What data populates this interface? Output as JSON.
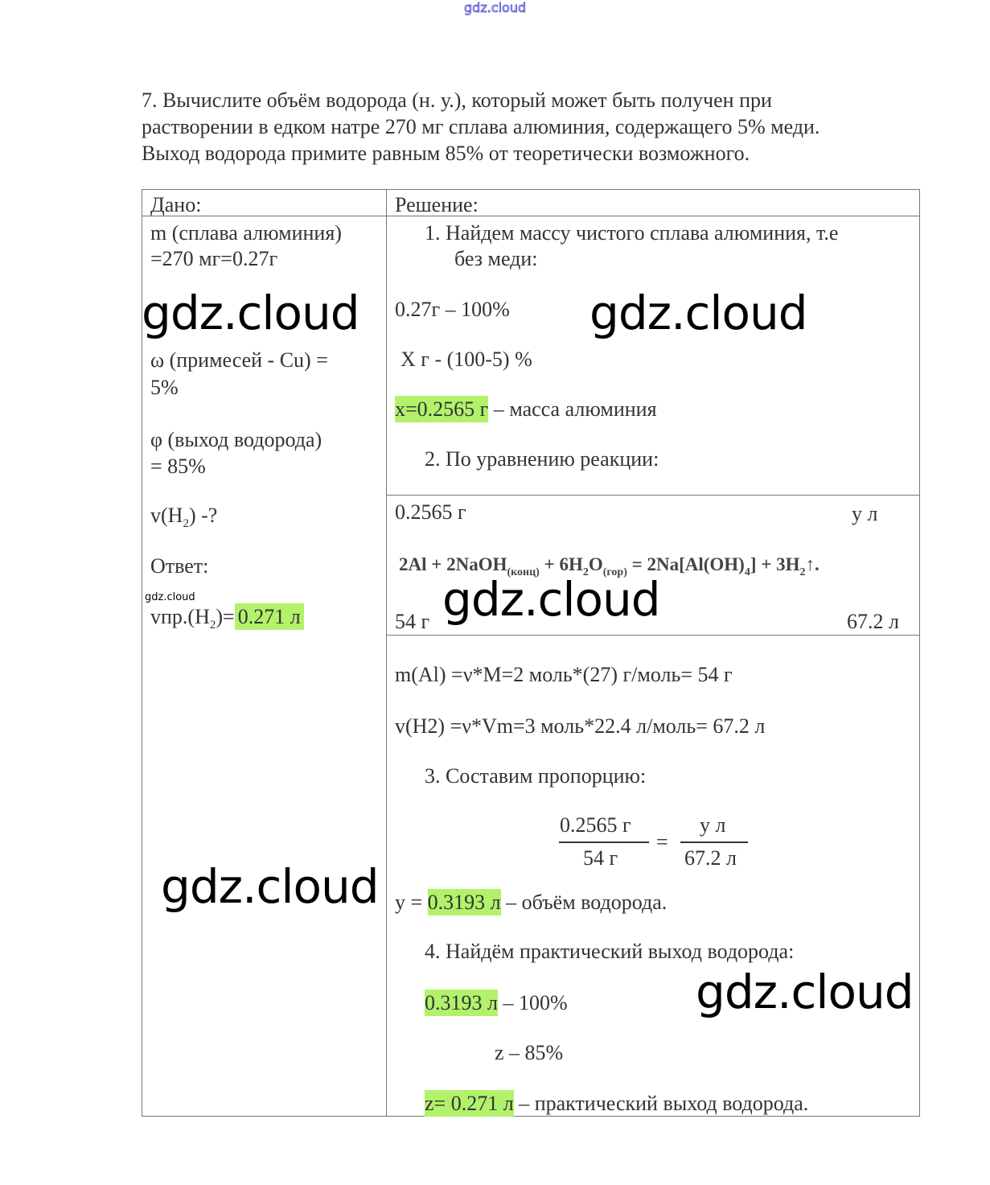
{
  "header_watermark": "gdz.cloud",
  "problem": [
    "7. Вычислите объём водорода (н. у.), который может быть получен при",
    "растворении в едком натре 270 мг сплава алюминия, содержащего 5% меди.",
    "Выход водорода примите равным 85% от теоретически возможного."
  ],
  "given": {
    "header": "Дано:",
    "mass1": "m (сплава алюминия)",
    "mass2": "=270 мг=0.27г",
    "omega1": "ω (примесей - Cu) =",
    "omega2": "5%",
    "phi1": "φ (выход водорода)",
    "phi2": "= 85%",
    "v_a": "v(H",
    "v_sub": "2",
    "v_b": ") -?",
    "answer_label": "Ответ:",
    "answer_a": "vпр.(H",
    "answer_sub": "2",
    "answer_b": ")=",
    "answer_value": "0.271 л"
  },
  "solution": {
    "header": "Решение:",
    "step1a": "1.  Найдем массу чистого сплава алюминия, т.е",
    "step1b": "без меди:",
    "p1": "0.27г – 100%",
    "p2": "X г - (100-5) %",
    "x_value": "x=0.2565 г",
    "x_rest": " – масса алюминия",
    "step2": "2.  По уравнению реакции:",
    "top_left": "0.2565 г",
    "top_right": "у л",
    "eq_a": "2Al + 2NaOH",
    "eq_s1": "(конц)",
    "eq_b": " + 6H",
    "eq_s2": "2",
    "eq_c": "O",
    "eq_s3": "(гор)",
    "eq_d": " = 2Na[Al(OH)",
    "eq_s4": "4",
    "eq_e": "] + 3H",
    "eq_s5": "2",
    "eq_f": "↑.",
    "bottom_left": "54 г",
    "bottom_right": "67.2 л",
    "mAl": "m(Al) =ν*M=2 моль*(27) г/моль= 54 г",
    "vH2": "v(H2) =ν*Vm=3 моль*22.4 л/моль= 67.2 л",
    "step3": "3.  Составим пропорцию:",
    "frac1_num": "0.2565 г",
    "frac1_den": "54 г",
    "eq_sign": "=",
    "frac2_num": "у л",
    "frac2_den": "67.2 л",
    "y_a": "y = ",
    "y_value": "0.3193 л",
    "y_rest": " – объём водорода.",
    "step4": "4.  Найдём практический выход водорода:",
    "q1_value": "0.3193 л",
    "q1_rest": " – 100%",
    "q2": "z – 85%",
    "z_value": "z= 0.271 л",
    "z_rest": " – практический выход водорода."
  },
  "watermarks": [
    "gdz.cloud",
    "gdz.cloud",
    "gdz.cloud",
    "gdz.cloud",
    "gdz.cloud",
    "gdz.cloud"
  ]
}
